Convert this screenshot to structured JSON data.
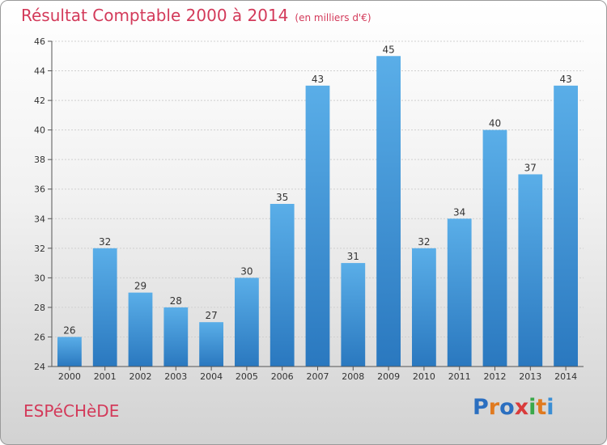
{
  "header": {
    "title": "Résultat Comptable 2000 à 2014",
    "subtitle": "(en milliers d'€)"
  },
  "footer": {
    "commune": "ESPéCHèDE",
    "logo_text": "Proxiti",
    "logo_colors": [
      "#2b6fc0",
      "#e07a1f",
      "#2b6fc0",
      "#d93b3b",
      "#3aa84a",
      "#e07a1f",
      "#3a8ed4"
    ]
  },
  "chart_data": {
    "type": "bar",
    "title": "Résultat Comptable 2000 à 2014",
    "subtitle": "(en milliers d'€)",
    "categories": [
      "2000",
      "2001",
      "2002",
      "2003",
      "2004",
      "2005",
      "2006",
      "2007",
      "2008",
      "2009",
      "2010",
      "2011",
      "2012",
      "2013",
      "2014"
    ],
    "values": [
      26,
      32,
      29,
      28,
      27,
      30,
      35,
      43,
      31,
      45,
      32,
      34,
      40,
      37,
      43
    ],
    "value_labels": [
      "26",
      "32",
      "29",
      "28",
      "27",
      "30",
      "35",
      "43",
      "31",
      "45",
      "32",
      "34",
      "40",
      "37",
      "43"
    ],
    "ylim": [
      24,
      46
    ],
    "yticks": [
      24,
      26,
      28,
      30,
      32,
      34,
      36,
      38,
      40,
      42,
      44,
      46
    ],
    "ytick_labels": [
      "24",
      "26",
      "28",
      "30",
      "32",
      "34",
      "36",
      "38",
      "40",
      "42",
      "44",
      "46"
    ],
    "grid": true,
    "bar_color": "#3d8fd6"
  }
}
